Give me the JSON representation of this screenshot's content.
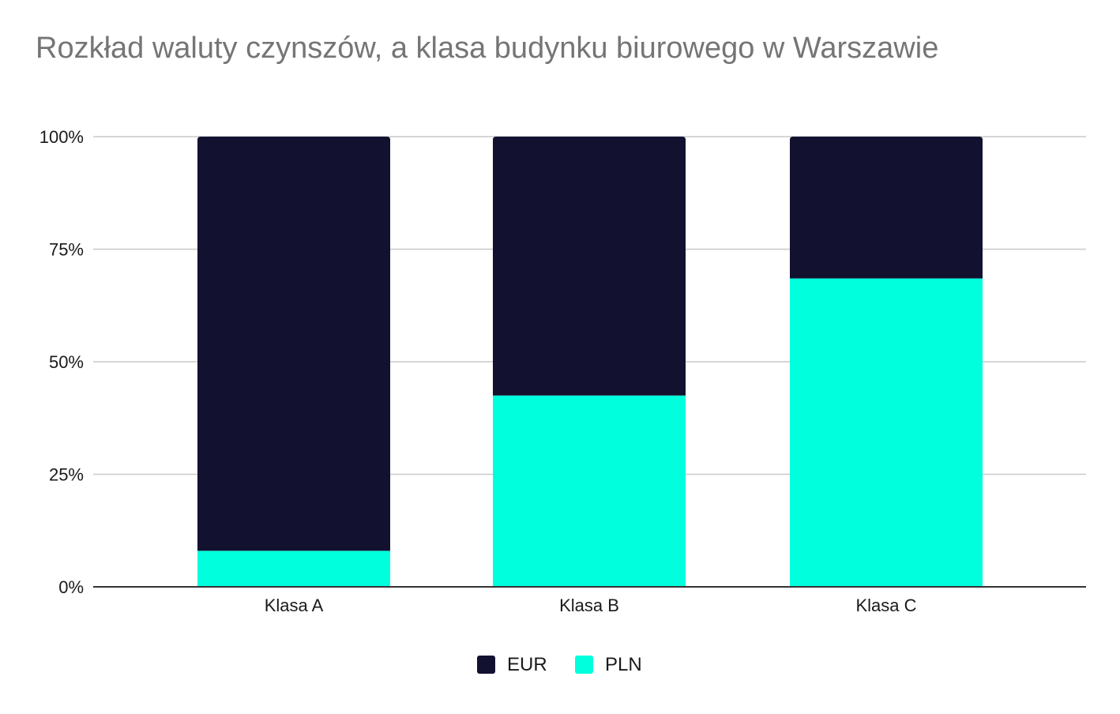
{
  "chart_data": {
    "type": "bar",
    "stacked": true,
    "normalized": true,
    "title": "Rozkład waluty czynszów, a klasa budynku biurowego w Warszawie",
    "xlabel": "",
    "ylabel": "",
    "categories": [
      "Klasa A",
      "Klasa B",
      "Klasa C"
    ],
    "series": [
      {
        "name": "PLN",
        "color": "#00FFDC",
        "values": [
          8,
          42.5,
          68.5
        ]
      },
      {
        "name": "EUR",
        "color": "#12112F",
        "values": [
          92,
          57.5,
          31.5
        ]
      }
    ],
    "ylim": [
      0,
      100
    ],
    "yticks": [
      "0%",
      "25%",
      "50%",
      "75%",
      "100%"
    ],
    "ytick_values": [
      0,
      25,
      50,
      75,
      100
    ],
    "grid": true,
    "legend": {
      "position": "bottom",
      "items": [
        {
          "label": "EUR",
          "color": "#12112F"
        },
        {
          "label": "PLN",
          "color": "#00FFDC"
        }
      ]
    }
  }
}
